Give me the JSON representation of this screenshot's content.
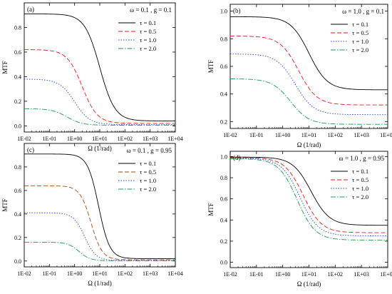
{
  "chart_data": [
    {
      "type": "line",
      "panel_label": "(a)",
      "params": "ω = 0.1 , g = 0.1",
      "xlabel": "Ω (1/rad)",
      "ylabel": "MTF",
      "xscale": "log",
      "xlim": [
        0.01,
        10000
      ],
      "ylim": [
        -0.05,
        1.0
      ],
      "xticks": [
        "1E-02",
        "1E-01",
        "1E+00",
        "1E+01",
        "1E+02",
        "1E+03",
        "1E+04"
      ],
      "yticks": [
        "0.0",
        "0.2",
        "0.4",
        "0.6",
        "0.8"
      ],
      "legend_position": "top-right",
      "series": [
        {
          "name": "τ = 0.1",
          "color": "#000000",
          "dash": "solid",
          "high": 0.91,
          "low": 0.04,
          "x0": 10,
          "width": 0.3
        },
        {
          "name": "τ = 0.5",
          "color": "#e41a1c",
          "dash": "dash",
          "high": 0.62,
          "low": 0.02,
          "x0": 2.0,
          "width": 0.3
        },
        {
          "name": "τ = 1.0",
          "color": "#1f3fd6",
          "dash": "dot",
          "high": 0.38,
          "low": 0.01,
          "x0": 1.0,
          "width": 0.3
        },
        {
          "name": "τ = 2.0",
          "color": "#1a9a50",
          "dash": "dashdot",
          "high": 0.14,
          "low": 0.005,
          "x0": 0.5,
          "width": 0.3
        }
      ]
    },
    {
      "type": "line",
      "panel_label": "(b)",
      "params": "ω = 1.0 , g = 0.1",
      "xlabel": "Ω (1/rad)",
      "ylabel": "MTF",
      "xscale": "log",
      "xlim": [
        0.01,
        10000
      ],
      "ylim": [
        0.15,
        1.05
      ],
      "xticks": [
        "1E-02",
        "1E-01",
        "1E+00",
        "1E+01",
        "1E+02",
        "1E+03",
        "1E+04"
      ],
      "yticks": [
        "0.2",
        "0.4",
        "0.6",
        "0.8",
        "1.0"
      ],
      "legend_position": "top-right",
      "series": [
        {
          "name": "τ = 0.1",
          "color": "#000000",
          "dash": "solid",
          "high": 0.96,
          "low": 0.43,
          "x0": 10,
          "width": 0.35
        },
        {
          "name": "τ = 0.5",
          "color": "#e41a1c",
          "dash": "dash",
          "high": 0.82,
          "low": 0.32,
          "x0": 4.0,
          "width": 0.35
        },
        {
          "name": "τ = 1.0",
          "color": "#1f3fd6",
          "dash": "dot",
          "high": 0.69,
          "low": 0.25,
          "x0": 3.0,
          "width": 0.35
        },
        {
          "name": "τ = 2.0",
          "color": "#1a9a50",
          "dash": "dashdot",
          "high": 0.51,
          "low": 0.18,
          "x0": 2.0,
          "width": 0.35
        }
      ]
    },
    {
      "type": "line",
      "panel_label": "(c)",
      "params": "ω = 0.1 , g = 0.95",
      "xlabel": "Ω (1/rad)",
      "ylabel": "MTF",
      "xscale": "log",
      "xlim": [
        0.01,
        10000
      ],
      "ylim": [
        -0.05,
        1.0
      ],
      "xticks": [
        "1E-02",
        "1E-01",
        "1E+00",
        "1E+01",
        "1E+02",
        "1E+03",
        "1E+04"
      ],
      "yticks": [
        "0.0",
        "0.2",
        "0.4",
        "0.6",
        "0.8"
      ],
      "legend_position": "top-right",
      "series": [
        {
          "name": "τ = 0.1",
          "color": "#000000",
          "dash": "solid",
          "high": 0.91,
          "low": 0.02,
          "x0": 9.0,
          "width": 0.22
        },
        {
          "name": "τ = 0.5",
          "color": "#9a4a12",
          "dash": "dash",
          "high": 0.64,
          "low": 0.01,
          "x0": 4.5,
          "width": 0.22
        },
        {
          "name": "τ = 1.0",
          "color": "#1f3fd6",
          "dash": "dot",
          "high": 0.41,
          "low": 0.005,
          "x0": 2.5,
          "width": 0.22
        },
        {
          "name": "τ = 2.0",
          "color": "#1a9a50",
          "dash": "dashdot",
          "high": 0.16,
          "low": 0.002,
          "x0": 1.5,
          "width": 0.22
        }
      ]
    },
    {
      "type": "line",
      "panel_label": "(d)",
      "params": "ω = 1.0 , g = 0.95",
      "xlabel": "Ω (1/rad)",
      "ylabel": "MTF",
      "xscale": "log",
      "xlim": [
        0.01,
        10000
      ],
      "ylim": [
        -0.05,
        1.05
      ],
      "xticks": [
        "1E-02",
        "1E-01",
        "1E+00",
        "1E+01",
        "1E+02",
        "1E+03",
        "1E+04"
      ],
      "yticks": [
        "0.0",
        "0.2",
        "0.4",
        "0.6",
        "0.8",
        "1.0"
      ],
      "legend_position": "top-right",
      "series": [
        {
          "name": "τ = 0.1",
          "color": "#000000",
          "dash": "solid",
          "high": 0.995,
          "low": 0.35,
          "x0": 12,
          "width": 0.35
        },
        {
          "name": "τ = 0.5",
          "color": "#e41a1c",
          "dash": "dash",
          "high": 0.99,
          "low": 0.28,
          "x0": 6.0,
          "width": 0.35
        },
        {
          "name": "τ = 1.0",
          "color": "#1f3fd6",
          "dash": "dot",
          "high": 0.985,
          "low": 0.25,
          "x0": 4.5,
          "width": 0.35
        },
        {
          "name": "τ = 2.0",
          "color": "#1a9a50",
          "dash": "dashdot",
          "high": 0.98,
          "low": 0.21,
          "x0": 3.5,
          "width": 0.35
        }
      ]
    }
  ]
}
